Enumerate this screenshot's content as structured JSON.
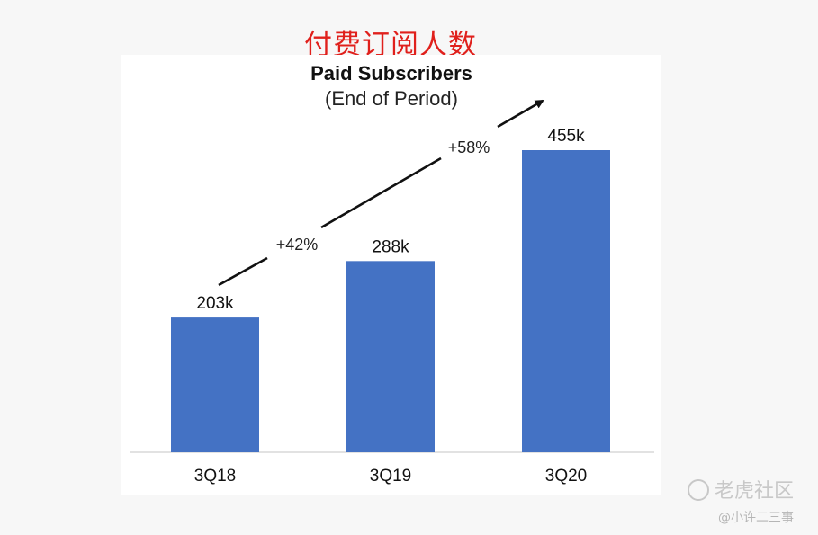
{
  "header": {
    "cn_title": "付费订阅人数"
  },
  "chart_data": {
    "type": "bar",
    "title": "Paid Subscribers",
    "subtitle": "(End of Period)",
    "categories": [
      "3Q18",
      "3Q19",
      "3Q20"
    ],
    "values": [
      203,
      288,
      455
    ],
    "data_labels": [
      "203k",
      "288k",
      "455k"
    ],
    "ylim": [
      0,
      520
    ],
    "grid": false,
    "bar_color": "#4472c4",
    "annotations": [
      {
        "text": "+42%"
      },
      {
        "text": "+58%"
      }
    ]
  },
  "watermark": {
    "main": "老虎社区",
    "sub": "@小许二三事"
  }
}
